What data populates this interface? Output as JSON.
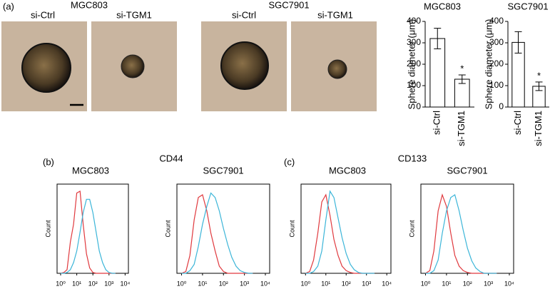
{
  "panel_a": {
    "label": "(a)",
    "groups": [
      {
        "title": "MGC803",
        "images": [
          "si-Ctrl",
          "si-TGM1"
        ]
      },
      {
        "title": "SGC7901",
        "images": [
          "si-Ctrl",
          "si-TGM1"
        ]
      }
    ]
  },
  "panel_b": {
    "label": "(b)",
    "marker": "CD44"
  },
  "panel_c": {
    "label": "(c)",
    "marker": "CD133"
  },
  "chart_data": [
    {
      "type": "bar",
      "title": "MGC803",
      "y_label": "Sphere diameter (μm)",
      "categories": [
        "si-Ctrl",
        "si-TGM1"
      ],
      "values": [
        320,
        130
      ],
      "errors": [
        48,
        20
      ],
      "color": "#ffffff",
      "ylim": [
        0,
        400
      ],
      "yticks": [
        0,
        100,
        200,
        300,
        400
      ],
      "annotations": [
        {
          "category": "si-TGM1",
          "text": "*"
        }
      ]
    },
    {
      "type": "bar",
      "title": "SGC7901",
      "y_label": "Sphere diameter (μm)",
      "categories": [
        "si-Ctrl",
        "si-TGM1"
      ],
      "values": [
        302,
        97
      ],
      "errors": [
        50,
        20
      ],
      "color": "#ffffff",
      "ylim": [
        0,
        400
      ],
      "yticks": [
        0,
        100,
        200,
        300,
        400
      ],
      "annotations": [
        {
          "category": "si-TGM1",
          "text": "*"
        }
      ]
    },
    {
      "type": "line",
      "title": "MGC803",
      "y_label": "Count",
      "xscale": "log",
      "x": [
        1,
        1.6,
        2.5,
        4,
        6.3,
        10,
        16,
        25,
        40,
        63,
        100,
        160,
        250,
        400,
        630,
        1000,
        1600,
        2500
      ],
      "series": [
        {
          "color": "#e0393e",
          "values": [
            0,
            1,
            4,
            35,
            55,
            90,
            92,
            55,
            22,
            6,
            1,
            0,
            0,
            0,
            0,
            0,
            0,
            0
          ]
        },
        {
          "color": "#3bb5d8",
          "values": [
            0,
            0,
            1,
            4,
            12,
            25,
            46,
            68,
            83,
            83,
            68,
            46,
            25,
            12,
            4,
            1,
            0,
            0
          ]
        }
      ],
      "xlim": [
        0.6,
        16000
      ],
      "ylim": [
        0,
        100
      ],
      "xticks": [
        {
          "value": 1,
          "label": "10⁰"
        },
        {
          "value": 10,
          "label": "10¹"
        },
        {
          "value": 100,
          "label": "10²"
        },
        {
          "value": 1000,
          "label": "10³"
        },
        {
          "value": 10000,
          "label": "10⁴"
        }
      ]
    },
    {
      "type": "line",
      "title": "SGC7901",
      "y_label": "Count",
      "xscale": "log",
      "x": [
        1,
        1.6,
        2.5,
        4,
        6.3,
        10,
        16,
        25,
        40,
        63,
        100,
        160,
        250,
        400,
        630,
        1000,
        1600,
        2500
      ],
      "series": [
        {
          "color": "#e0393e",
          "values": [
            0,
            2,
            20,
            60,
            85,
            88,
            70,
            45,
            25,
            8,
            2,
            0,
            0,
            0,
            0,
            0,
            0,
            0
          ]
        },
        {
          "color": "#3bb5d8",
          "values": [
            0,
            0,
            3,
            10,
            30,
            55,
            75,
            90,
            85,
            70,
            50,
            32,
            18,
            8,
            3,
            1,
            0,
            0
          ]
        }
      ],
      "xlim": [
        0.6,
        16000
      ],
      "ylim": [
        0,
        100
      ],
      "xticks": [
        {
          "value": 1,
          "label": "10⁰"
        },
        {
          "value": 10,
          "label": "10¹"
        },
        {
          "value": 100,
          "label": "10²"
        },
        {
          "value": 1000,
          "label": "10³"
        },
        {
          "value": 10000,
          "label": "10⁴"
        }
      ]
    },
    {
      "type": "line",
      "title": "MGC803",
      "y_label": "Count",
      "xscale": "log",
      "x": [
        1,
        1.6,
        2.5,
        4,
        6.3,
        10,
        16,
        25,
        40,
        63,
        100,
        160,
        250,
        400,
        630,
        1000,
        1600,
        2500
      ],
      "series": [
        {
          "color": "#e0393e",
          "values": [
            0,
            2,
            15,
            45,
            80,
            88,
            65,
            38,
            20,
            8,
            3,
            1,
            0,
            0,
            0,
            0,
            0,
            0
          ]
        },
        {
          "color": "#3bb5d8",
          "values": [
            0,
            0,
            2,
            8,
            25,
            60,
            92,
            85,
            62,
            40,
            22,
            10,
            4,
            1,
            0,
            0,
            0,
            0
          ]
        }
      ],
      "xlim": [
        0.6,
        16000
      ],
      "ylim": [
        0,
        100
      ],
      "xticks": [
        {
          "value": 1,
          "label": "10⁰"
        },
        {
          "value": 10,
          "label": "10¹"
        },
        {
          "value": 100,
          "label": "10²"
        },
        {
          "value": 1000,
          "label": "10³"
        },
        {
          "value": 10000,
          "label": "10⁴"
        }
      ]
    },
    {
      "type": "line",
      "title": "SGC7901",
      "y_label": "Count",
      "xscale": "log",
      "x": [
        1,
        1.6,
        2.5,
        4,
        6.3,
        10,
        16,
        25,
        40,
        63,
        100,
        160,
        250,
        400,
        630,
        1000,
        1600,
        2500
      ],
      "series": [
        {
          "color": "#e0393e",
          "values": [
            0,
            3,
            25,
            70,
            88,
            75,
            45,
            20,
            8,
            3,
            1,
            0,
            0,
            0,
            0,
            0,
            0,
            0
          ]
        },
        {
          "color": "#3bb5d8",
          "values": [
            0,
            0,
            3,
            15,
            45,
            70,
            85,
            88,
            70,
            48,
            28,
            14,
            6,
            2,
            0,
            0,
            0,
            0
          ]
        }
      ],
      "xlim": [
        0.6,
        16000
      ],
      "ylim": [
        0,
        100
      ],
      "xticks": [
        {
          "value": 1,
          "label": "10⁰"
        },
        {
          "value": 10,
          "label": "10¹"
        },
        {
          "value": 100,
          "label": "10²"
        },
        {
          "value": 1000,
          "label": "10³"
        },
        {
          "value": 10000,
          "label": "10⁴"
        }
      ]
    }
  ]
}
